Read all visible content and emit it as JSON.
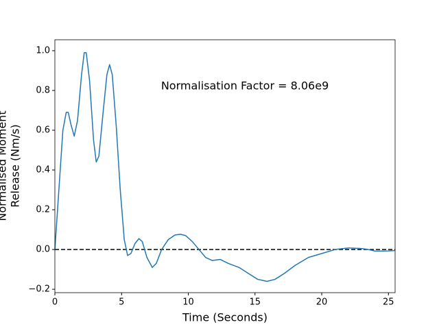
{
  "chart_data": {
    "type": "line",
    "xlabel": "Time (Seconds)",
    "ylabel": [
      "Normalised Moment",
      "Release (Nm/s)"
    ],
    "annotation": {
      "text": "Normalisation Factor = 8.06e9",
      "x": 7.96,
      "y": 0.82
    },
    "reference_line": {
      "y": 0,
      "color": "#000000",
      "style": "dashed"
    },
    "x": [
      0,
      0.3,
      0.6,
      0.85,
      1.0,
      1.2,
      1.45,
      1.7,
      2.0,
      2.2,
      2.35,
      2.6,
      2.9,
      3.1,
      3.3,
      3.6,
      3.9,
      4.1,
      4.3,
      4.6,
      4.9,
      5.2,
      5.45,
      5.7,
      6.0,
      6.3,
      6.55,
      6.9,
      7.3,
      7.6,
      8.0,
      8.5,
      9.0,
      9.4,
      9.8,
      10.3,
      10.8,
      11.3,
      11.8,
      12.4,
      13.0,
      13.8,
      14.5,
      15.2,
      15.9,
      16.5,
      17.2,
      18.0,
      19.0,
      20.0,
      21.0,
      22.0,
      23.0,
      23.5,
      24.0,
      25.0,
      25.5
    ],
    "series": [
      {
        "color": "#1f77b4",
        "values": [
          0,
          0.3,
          0.6,
          0.69,
          0.69,
          0.63,
          0.57,
          0.65,
          0.88,
          0.99,
          0.99,
          0.85,
          0.55,
          0.44,
          0.47,
          0.68,
          0.88,
          0.93,
          0.88,
          0.62,
          0.3,
          0.05,
          -0.03,
          -0.02,
          0.03,
          0.055,
          0.04,
          -0.04,
          -0.09,
          -0.07,
          0.0,
          0.05,
          0.073,
          0.077,
          0.07,
          0.04,
          0.0,
          -0.04,
          -0.055,
          -0.05,
          -0.07,
          -0.09,
          -0.12,
          -0.15,
          -0.16,
          -0.15,
          -0.12,
          -0.08,
          -0.04,
          -0.02,
          0.0,
          0.008,
          0.005,
          0.0,
          -0.008,
          -0.007,
          -0.005
        ]
      }
    ],
    "xlim": [
      0,
      25.5
    ],
    "ylim": [
      -0.217,
      1.055
    ],
    "xticks": [
      0,
      5,
      10,
      15,
      20,
      25
    ],
    "yticks": [
      {
        "value": -0.2,
        "label": "−0.2"
      },
      {
        "value": 0,
        "label": "0.0"
      },
      {
        "value": 0.2,
        "label": "0.2"
      },
      {
        "value": 0.4,
        "label": "0.4"
      },
      {
        "value": 0.6,
        "label": "0.6"
      },
      {
        "value": 0.8,
        "label": "0.8"
      },
      {
        "value": 1.0,
        "label": "1.0"
      }
    ]
  }
}
